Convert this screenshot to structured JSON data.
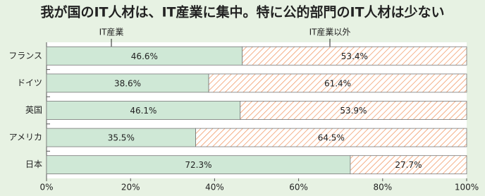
{
  "chart_data": {
    "type": "stacked-bar-horizontal",
    "title": "我が国のIT人材は、IT産業に集中。特に公的部門のIT人材は少ない",
    "annotations": [
      "IT産業",
      "IT産業以外"
    ],
    "categories": [
      "フランス",
      "ドイツ",
      "英国",
      "アメリカ",
      "日本"
    ],
    "series": [
      {
        "name": "IT産業",
        "color": "#cfe8d6",
        "pattern": "solid",
        "values": [
          46.6,
          38.6,
          46.1,
          35.5,
          72.3
        ],
        "value_labels": [
          "46.6%",
          "38.6%",
          "46.1%",
          "35.5%",
          "72.3%"
        ]
      },
      {
        "name": "IT産業以外",
        "color": "#f0915a",
        "pattern": "hatch",
        "values": [
          53.4,
          61.4,
          53.9,
          64.5,
          27.7
        ],
        "value_labels": [
          "53.4%",
          "61.4%",
          "53.9%",
          "64.5%",
          "27.7%"
        ]
      }
    ],
    "xlim": [
      0,
      100
    ],
    "xticks": [
      {
        "value": 0,
        "label": "0%"
      },
      {
        "value": 20,
        "label": "20%"
      },
      {
        "value": 40,
        "label": "40%"
      },
      {
        "value": 60,
        "label": "60%"
      },
      {
        "value": 80,
        "label": "80%"
      },
      {
        "value": 100,
        "label": "100%"
      }
    ]
  }
}
